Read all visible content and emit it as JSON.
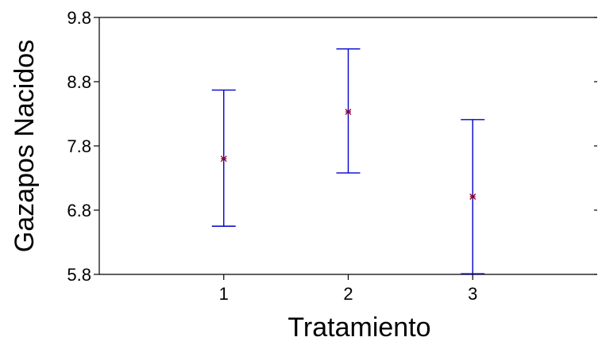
{
  "chart_data": {
    "type": "scatter",
    "title": "",
    "xlabel": "Tratamiento",
    "ylabel": "Gazapos Nacidos",
    "categories": [
      "1",
      "2",
      "3"
    ],
    "xlim": [
      0,
      4
    ],
    "ylim": [
      5.8,
      9.8
    ],
    "yticks": [
      "5.8",
      "6.8",
      "7.8",
      "8.8",
      "9.8"
    ],
    "grid": false,
    "series": [
      {
        "means": [
          7.6,
          8.33,
          7.01
        ],
        "lower": [
          6.55,
          7.38,
          5.81
        ],
        "upper": [
          8.67,
          9.31,
          8.21
        ]
      }
    ],
    "colors": {
      "error_bar": "#0000cc",
      "marker": "#800040",
      "axis": "#000000"
    }
  }
}
